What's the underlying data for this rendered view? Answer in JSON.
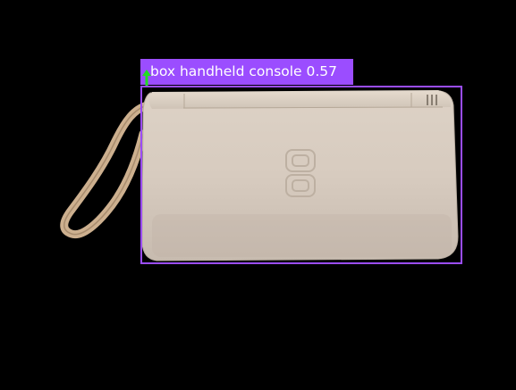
{
  "detection": {
    "label_text": "box handheld console 0.57",
    "box_color": "#9b4dff",
    "marker_color": "#22dd22"
  },
  "object": {
    "icon": "handheld-console-photo"
  }
}
